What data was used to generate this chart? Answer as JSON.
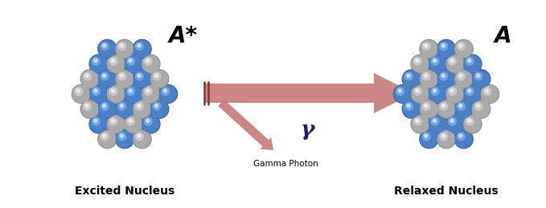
{
  "bg_color": "#ffffff",
  "blue_dark": "#2a5fa8",
  "blue_mid": "#4a80c8",
  "blue_light": "#7ab0e8",
  "gray_dark": "#888888",
  "gray_mid": "#aaaaaa",
  "gray_light": "#d0d0d0",
  "arrow_color": "#c97878",
  "label_excited": "Excited Nucleus",
  "label_relaxed": "Relaxed Nucleus",
  "label_A_star": "A*",
  "label_A": "A",
  "label_gamma": "γ",
  "label_gamma_photon": "Gamma Photon",
  "n1cx": 1.55,
  "n1cy": 1.42,
  "n2cx": 5.55,
  "n2cy": 1.42,
  "ball_r": 0.115,
  "nucleus_scale": 1.0
}
